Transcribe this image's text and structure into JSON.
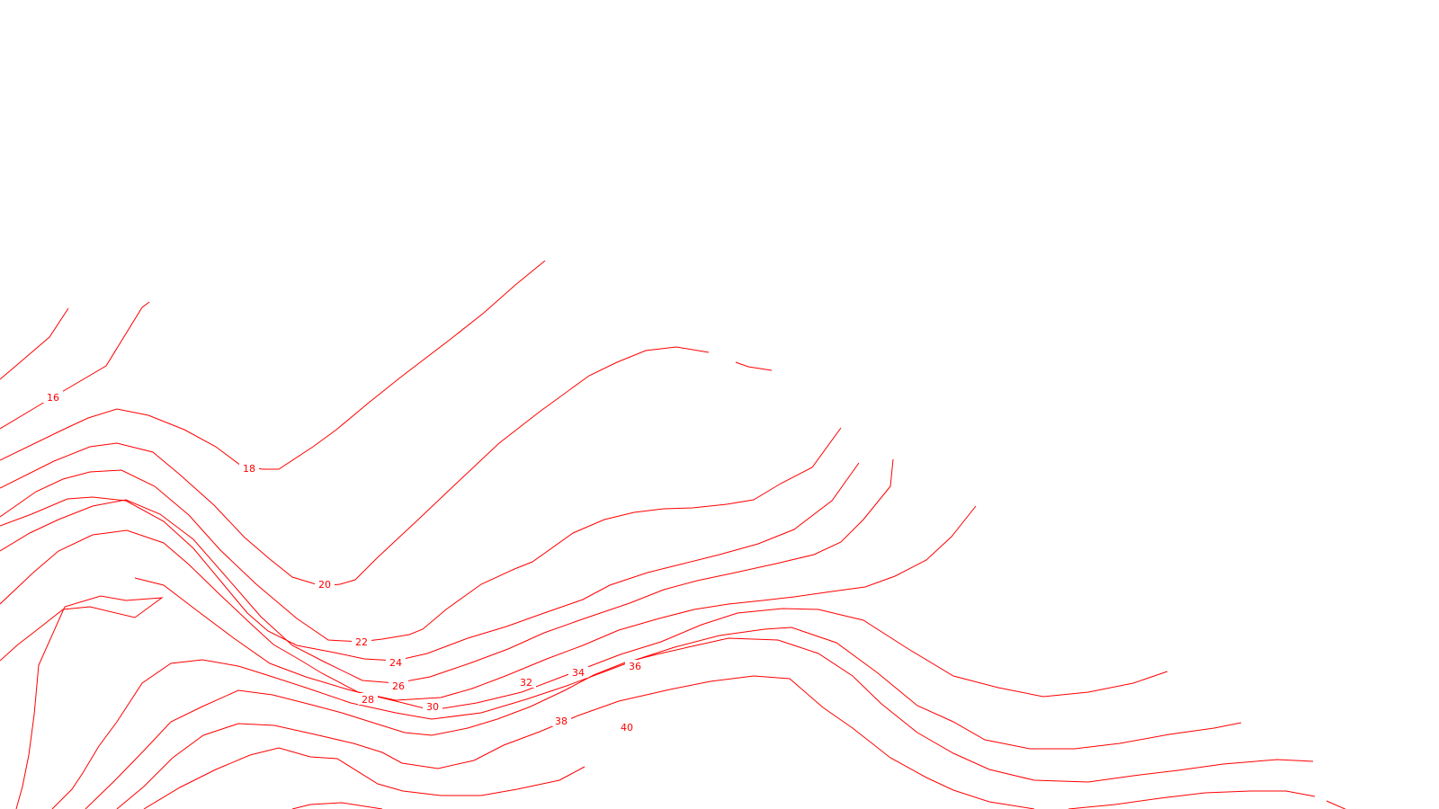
{
  "map": {
    "line_color": "#ff0000",
    "background": "#ffffff",
    "contour_labels": [
      "16",
      "18",
      "20",
      "22",
      "24",
      "26",
      "28",
      "30",
      "32",
      "34",
      "36",
      "38",
      "40"
    ]
  }
}
